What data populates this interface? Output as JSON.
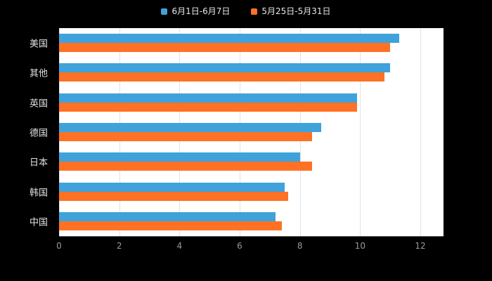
{
  "chart_data": {
    "type": "bar",
    "orientation": "horizontal",
    "title": "",
    "xlabel": "",
    "ylabel": "",
    "xlim": [
      0,
      12
    ],
    "xticks": [
      0,
      2,
      4,
      6,
      8,
      10,
      12
    ],
    "grid": true,
    "legend_position": "top",
    "plot_background": "#ffffff",
    "page_background": "#000000",
    "categories": [
      "美国",
      "其他",
      "英国",
      "德国",
      "日本",
      "韩国",
      "中国"
    ],
    "series": [
      {
        "name": "6月1日-6月7日",
        "color": "#3FA2DB",
        "values": [
          11.3,
          11.0,
          9.9,
          8.7,
          8.0,
          7.5,
          7.2
        ]
      },
      {
        "name": "5月25日-5月31日",
        "color": "#FF7124",
        "values": [
          11.0,
          10.8,
          9.9,
          8.4,
          8.4,
          7.6,
          7.4
        ]
      }
    ]
  }
}
